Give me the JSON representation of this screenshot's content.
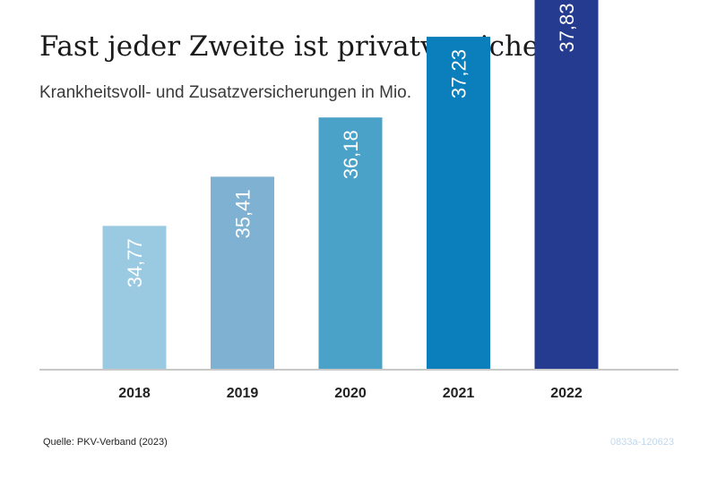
{
  "header": {
    "title": "Fast jeder Zweite ist privatversichert",
    "subtitle": "Krankheitsvoll- und Zusatzversicherungen in Mio."
  },
  "footer": {
    "source": "Quelle: PKV-Verband (2023)",
    "code": "0833a-120623"
  },
  "chart_data": {
    "type": "bar",
    "title": "Fast jeder Zweite ist privatversichert",
    "subtitle": "Krankheitsvoll- und Zusatzversicherungen in Mio.",
    "xlabel": "",
    "ylabel": "",
    "categories": [
      "2018",
      "2019",
      "2020",
      "2021",
      "2022"
    ],
    "values": [
      34.77,
      35.41,
      36.18,
      37.23,
      37.83
    ],
    "value_labels": [
      "34,77",
      "35,41",
      "36,18",
      "37,23",
      "37,83"
    ],
    "colors": [
      "#9ac9e2",
      "#7fb1d3",
      "#4aa2c9",
      "#0a7fbb",
      "#243b8f"
    ],
    "axis_color": "#c8c8c8",
    "grid": false,
    "legend": "none"
  }
}
